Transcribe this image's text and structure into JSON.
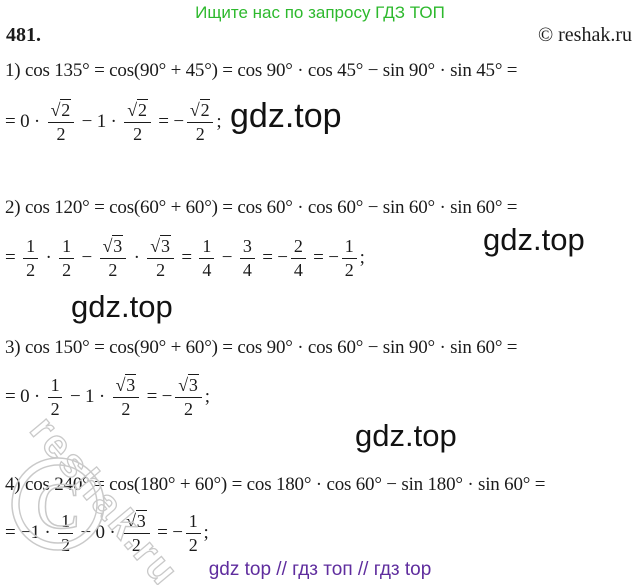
{
  "colors": {
    "green": "#2db92d",
    "purple": "#5f2d9e",
    "ink": "#1b1b1b",
    "watermark_gray": "#c9c9c9",
    "gdz_black": "#121212"
  },
  "header": {
    "promo": "Ищите нас по запросу ГДЗ ТОП",
    "problem_number": "481.",
    "copyright": "© reshak.ru"
  },
  "watermarks": {
    "gdz_top": "gdz.top",
    "diagonal": "reshak.ru",
    "stamp_letter": "C",
    "footer": "gdz top  //  гдз топ  //  гдз top"
  },
  "math": {
    "lines": [
      {
        "tokens": [
          {
            "t": "text",
            "v": "1) cos 135° = cos(90° + 45°) = cos 90° · cos 45° − sin 90° · sin 45° ="
          }
        ]
      },
      {
        "tokens": [
          {
            "t": "text",
            "v": "= 0 · "
          },
          {
            "t": "frac",
            "num": "√2",
            "den": "2"
          },
          {
            "t": "text",
            "v": " − 1 · "
          },
          {
            "t": "frac",
            "num": "√2",
            "den": "2"
          },
          {
            "t": "text",
            "v": " = −"
          },
          {
            "t": "frac",
            "num": "√2",
            "den": "2"
          },
          {
            "t": "text",
            "v": ";"
          }
        ]
      },
      {
        "tokens": [
          {
            "t": "text",
            "v": "2) cos 120° = cos(60° + 60°) = cos 60° · cos 60° − sin 60° · sin 60° ="
          }
        ]
      },
      {
        "tokens": [
          {
            "t": "text",
            "v": "= "
          },
          {
            "t": "frac",
            "num": "1",
            "den": "2"
          },
          {
            "t": "text",
            "v": " · "
          },
          {
            "t": "frac",
            "num": "1",
            "den": "2"
          },
          {
            "t": "text",
            "v": " − "
          },
          {
            "t": "frac",
            "num": "√3",
            "den": "2"
          },
          {
            "t": "text",
            "v": " · "
          },
          {
            "t": "frac",
            "num": "√3",
            "den": "2"
          },
          {
            "t": "text",
            "v": " = "
          },
          {
            "t": "frac",
            "num": "1",
            "den": "4"
          },
          {
            "t": "text",
            "v": " − "
          },
          {
            "t": "frac",
            "num": "3",
            "den": "4"
          },
          {
            "t": "text",
            "v": " = −"
          },
          {
            "t": "frac",
            "num": "2",
            "den": "4"
          },
          {
            "t": "text",
            "v": " = −"
          },
          {
            "t": "frac",
            "num": "1",
            "den": "2"
          },
          {
            "t": "text",
            "v": ";"
          }
        ]
      },
      {
        "tokens": [
          {
            "t": "text",
            "v": "3) cos 150° = cos(90° + 60°) = cos 90° · cos 60° − sin 90° · sin 60° ="
          }
        ]
      },
      {
        "tokens": [
          {
            "t": "text",
            "v": "= 0 · "
          },
          {
            "t": "frac",
            "num": "1",
            "den": "2"
          },
          {
            "t": "text",
            "v": " − 1 · "
          },
          {
            "t": "frac",
            "num": "√3",
            "den": "2"
          },
          {
            "t": "text",
            "v": " = −"
          },
          {
            "t": "frac",
            "num": "√3",
            "den": "2"
          },
          {
            "t": "text",
            "v": ";"
          }
        ]
      },
      {
        "tokens": [
          {
            "t": "text",
            "v": "4) cos 240° = cos(180° + 60°) = cos 180° · cos 60° − sin 180° · sin 60° ="
          }
        ]
      },
      {
        "tokens": [
          {
            "t": "text",
            "v": "= −1 · "
          },
          {
            "t": "frac",
            "num": "1",
            "den": "2"
          },
          {
            "t": "text",
            "v": " − 0 · "
          },
          {
            "t": "frac",
            "num": "√3",
            "den": "2"
          },
          {
            "t": "text",
            "v": " = −"
          },
          {
            "t": "frac",
            "num": "1",
            "den": "2"
          },
          {
            "t": "text",
            "v": ";"
          }
        ]
      }
    ]
  }
}
